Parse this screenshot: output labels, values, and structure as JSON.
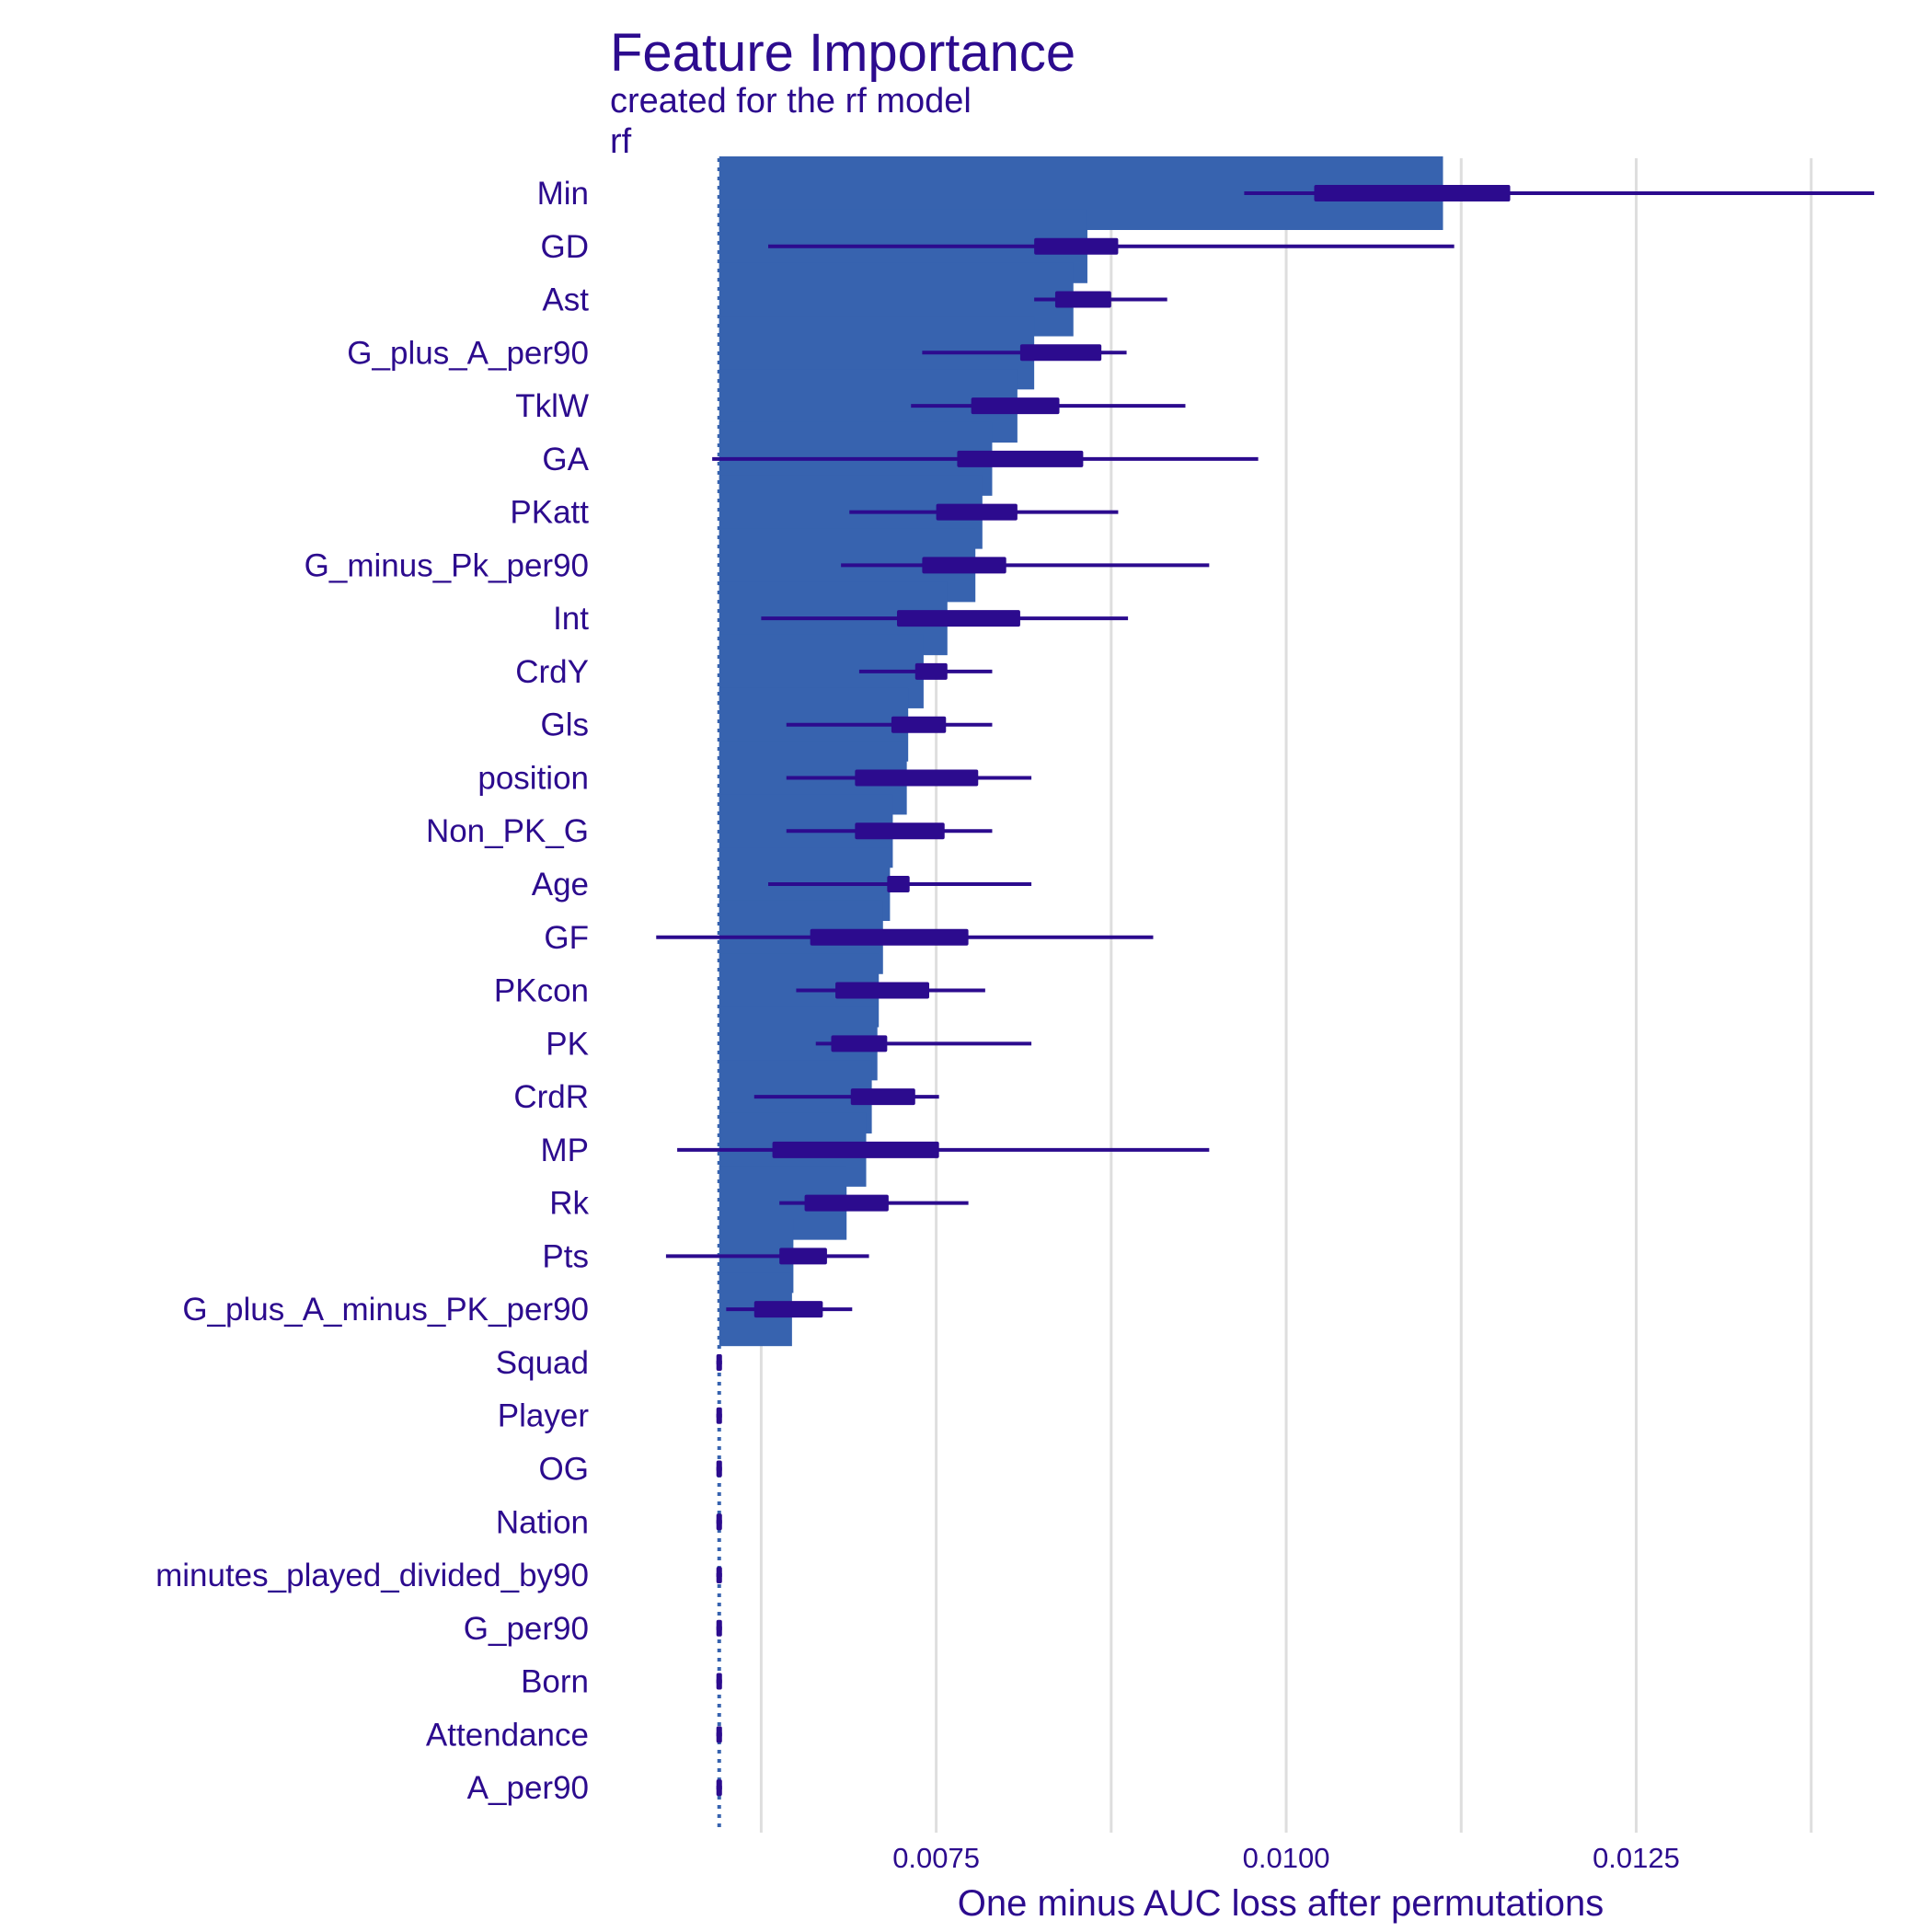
{
  "chart_data": {
    "type": "bar",
    "title": "Feature Importance",
    "subtitle": "created for the rf model",
    "panel_label": "rf",
    "xlabel": "One minus AUC loss after permutations",
    "baseline": 0.00595,
    "xlim": [
      0.00515,
      0.01435
    ],
    "xticks": [
      0.0075,
      0.01,
      0.0125
    ],
    "xtick_labels": [
      "0.0075",
      "0.0100",
      "0.0125"
    ],
    "grid": true,
    "colors": {
      "bar": "#3763AF",
      "whisker": "#2C0B8E",
      "text": "#2C0B8E",
      "grid": "#DEDEDE"
    },
    "features": [
      {
        "name": "Min",
        "value": 0.01112,
        "min": 0.0097,
        "q1": 0.0102,
        "q3": 0.0116,
        "max": 0.0142
      },
      {
        "name": "GD",
        "value": 0.00858,
        "min": 0.0063,
        "q1": 0.0082,
        "q3": 0.0088,
        "max": 0.0112
      },
      {
        "name": "Ast",
        "value": 0.00848,
        "min": 0.0082,
        "q1": 0.00835,
        "q3": 0.00875,
        "max": 0.00915
      },
      {
        "name": "G_plus_A_per90",
        "value": 0.0082,
        "min": 0.0074,
        "q1": 0.0081,
        "q3": 0.00868,
        "max": 0.00886
      },
      {
        "name": "TklW",
        "value": 0.00808,
        "min": 0.00732,
        "q1": 0.00775,
        "q3": 0.00838,
        "max": 0.00928
      },
      {
        "name": "GA",
        "value": 0.0079,
        "min": 0.0059,
        "q1": 0.00765,
        "q3": 0.00855,
        "max": 0.0098
      },
      {
        "name": "PKatt",
        "value": 0.00783,
        "min": 0.00688,
        "q1": 0.0075,
        "q3": 0.00808,
        "max": 0.0088
      },
      {
        "name": "G_minus_Pk_per90",
        "value": 0.00778,
        "min": 0.00682,
        "q1": 0.0074,
        "q3": 0.008,
        "max": 0.00945
      },
      {
        "name": "Int",
        "value": 0.00758,
        "min": 0.00625,
        "q1": 0.00722,
        "q3": 0.0081,
        "max": 0.00887
      },
      {
        "name": "CrdY",
        "value": 0.00741,
        "min": 0.00695,
        "q1": 0.00735,
        "q3": 0.00758,
        "max": 0.0079
      },
      {
        "name": "Gls",
        "value": 0.0073,
        "min": 0.00643,
        "q1": 0.00718,
        "q3": 0.00757,
        "max": 0.0079
      },
      {
        "name": "position",
        "value": 0.00729,
        "min": 0.00643,
        "q1": 0.00692,
        "q3": 0.0078,
        "max": 0.00818
      },
      {
        "name": "Non_PK_G",
        "value": 0.00719,
        "min": 0.00643,
        "q1": 0.00692,
        "q3": 0.00756,
        "max": 0.0079
      },
      {
        "name": "Age",
        "value": 0.00717,
        "min": 0.0063,
        "q1": 0.00715,
        "q3": 0.00731,
        "max": 0.00818
      },
      {
        "name": "GF",
        "value": 0.00712,
        "min": 0.0055,
        "q1": 0.0066,
        "q3": 0.00773,
        "max": 0.00905
      },
      {
        "name": "PKcon",
        "value": 0.00709,
        "min": 0.0065,
        "q1": 0.00678,
        "q3": 0.00745,
        "max": 0.00785
      },
      {
        "name": "PK",
        "value": 0.00708,
        "min": 0.00664,
        "q1": 0.00675,
        "q3": 0.00715,
        "max": 0.00818
      },
      {
        "name": "CrdR",
        "value": 0.00704,
        "min": 0.0062,
        "q1": 0.00689,
        "q3": 0.00735,
        "max": 0.00752
      },
      {
        "name": "MP",
        "value": 0.007,
        "min": 0.00565,
        "q1": 0.00633,
        "q3": 0.00752,
        "max": 0.00945
      },
      {
        "name": "Rk",
        "value": 0.00686,
        "min": 0.00638,
        "q1": 0.00656,
        "q3": 0.00716,
        "max": 0.00773
      },
      {
        "name": "Pts",
        "value": 0.00648,
        "min": 0.00557,
        "q1": 0.00638,
        "q3": 0.00672,
        "max": 0.00702
      },
      {
        "name": "G_plus_A_minus_PK_per90",
        "value": 0.00647,
        "min": 0.006,
        "q1": 0.0062,
        "q3": 0.00669,
        "max": 0.0069
      },
      {
        "name": "Squad",
        "value": 0.00595,
        "min": 0.00593,
        "q1": 0.00593,
        "q3": 0.00597,
        "max": 0.00597
      },
      {
        "name": "Player",
        "value": 0.00595,
        "min": 0.00593,
        "q1": 0.00593,
        "q3": 0.00597,
        "max": 0.00597
      },
      {
        "name": "OG",
        "value": 0.00595,
        "min": 0.00593,
        "q1": 0.00593,
        "q3": 0.00597,
        "max": 0.00597
      },
      {
        "name": "Nation",
        "value": 0.00595,
        "min": 0.00593,
        "q1": 0.00593,
        "q3": 0.00597,
        "max": 0.00597
      },
      {
        "name": "minutes_played_divided_by90",
        "value": 0.00595,
        "min": 0.00593,
        "q1": 0.00593,
        "q3": 0.00597,
        "max": 0.00597
      },
      {
        "name": "G_per90",
        "value": 0.00595,
        "min": 0.00593,
        "q1": 0.00593,
        "q3": 0.00597,
        "max": 0.00597
      },
      {
        "name": "Born",
        "value": 0.00595,
        "min": 0.00593,
        "q1": 0.00593,
        "q3": 0.00597,
        "max": 0.00597
      },
      {
        "name": "Attendance",
        "value": 0.00595,
        "min": 0.00593,
        "q1": 0.00593,
        "q3": 0.00597,
        "max": 0.00597
      },
      {
        "name": "A_per90",
        "value": 0.00595,
        "min": 0.00593,
        "q1": 0.00593,
        "q3": 0.00597,
        "max": 0.00597
      }
    ]
  }
}
